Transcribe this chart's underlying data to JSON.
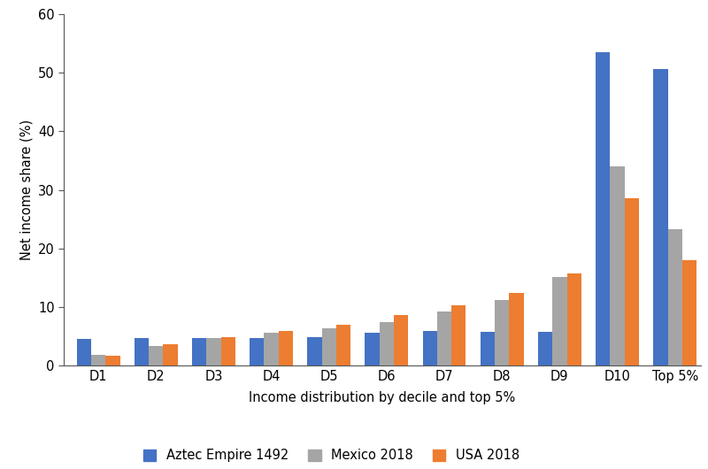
{
  "categories": [
    "D1",
    "D2",
    "D3",
    "D4",
    "D5",
    "D6",
    "D7",
    "D8",
    "D9",
    "D10",
    "Top 5%"
  ],
  "aztec": [
    4.6,
    4.7,
    4.7,
    4.8,
    4.9,
    5.6,
    5.9,
    5.8,
    5.8,
    53.5,
    50.7
  ],
  "mexico": [
    1.9,
    3.4,
    4.8,
    5.7,
    6.4,
    7.5,
    9.2,
    11.3,
    15.1,
    34.0,
    23.3
  ],
  "usa": [
    1.7,
    3.7,
    4.9,
    5.9,
    7.0,
    8.7,
    10.3,
    12.5,
    15.8,
    28.6,
    18.0
  ],
  "aztec_color": "#4472C4",
  "mexico_color": "#A5A5A5",
  "usa_color": "#ED7D31",
  "ylabel": "Net income share (%)",
  "xlabel": "Income distribution by decile and top 5%",
  "ylim": [
    0,
    60
  ],
  "yticks": [
    0,
    10,
    20,
    30,
    40,
    50,
    60
  ],
  "legend_labels": [
    "Aztec Empire 1492",
    "Mexico 2018",
    "USA 2018"
  ],
  "bar_width": 0.25,
  "figsize": [
    8.0,
    5.3
  ],
  "dpi": 100
}
